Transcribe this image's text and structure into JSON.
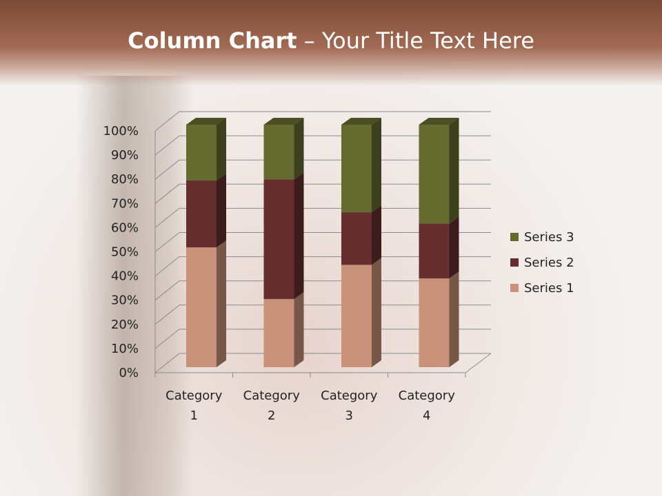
{
  "slide": {
    "title_bold": "Column Chart",
    "title_rest": " – Your Title Text Here"
  },
  "chart_data": {
    "type": "bar",
    "stacking": "percent",
    "three_d": true,
    "categories": [
      "Category 1",
      "Category 2",
      "Category 3",
      "Category 4"
    ],
    "category_lines": [
      [
        "Category",
        "1"
      ],
      [
        "Category",
        "2"
      ],
      [
        "Category",
        "3"
      ],
      [
        "Category",
        "4"
      ]
    ],
    "series": [
      {
        "name": "Series 1",
        "color": "#C8917A",
        "values": [
          49.4,
          28.1,
          42.2,
          36.6
        ]
      },
      {
        "name": "Series 2",
        "color": "#662F2F",
        "values": [
          27.6,
          49.4,
          21.7,
          22.7
        ]
      },
      {
        "name": "Series 3",
        "color": "#646B2F",
        "values": [
          23.0,
          22.5,
          36.1,
          40.7
        ]
      }
    ],
    "yticks": [
      "0%",
      "10%",
      "20%",
      "30%",
      "40%",
      "50%",
      "60%",
      "70%",
      "80%",
      "90%",
      "100%"
    ],
    "ylim": [
      0,
      100
    ],
    "grid": true,
    "legend_position": "right"
  }
}
